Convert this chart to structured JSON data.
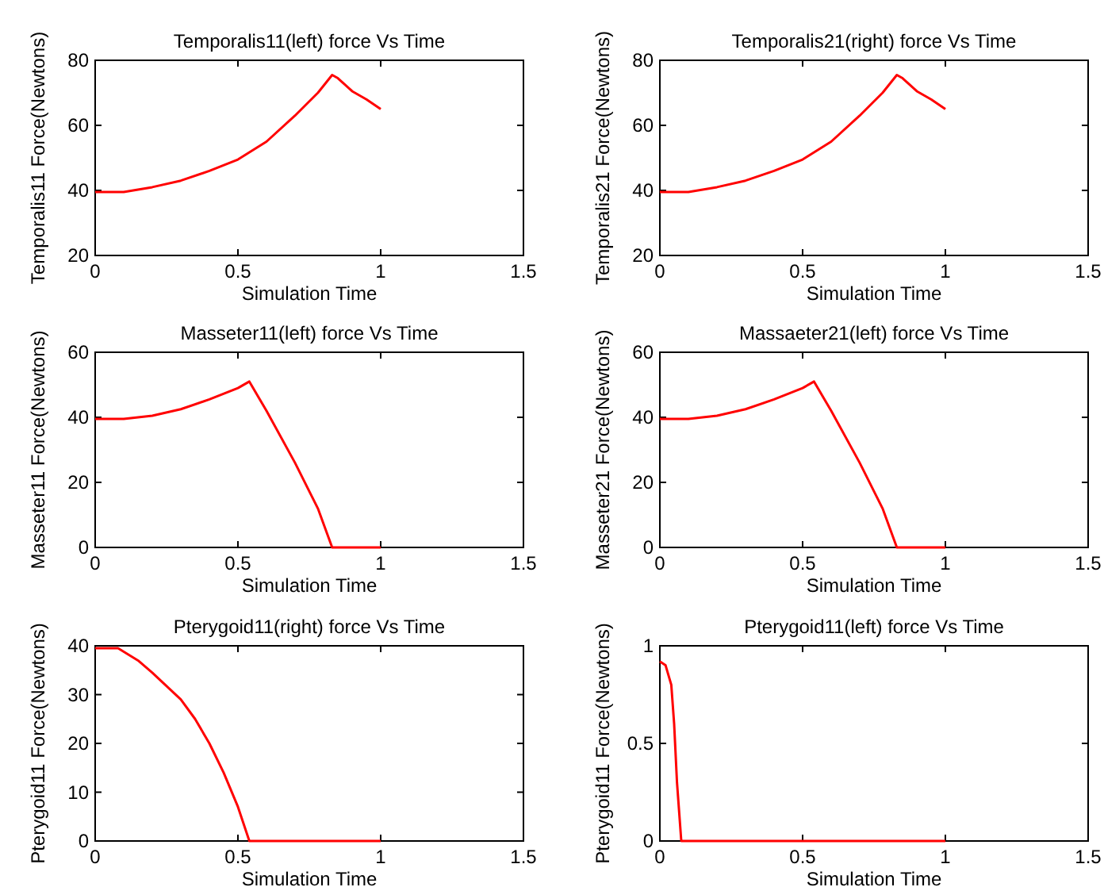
{
  "chart_data": [
    {
      "type": "line",
      "title": "Temporalis11(left) force Vs Time",
      "xlabel": "Simulation Time",
      "ylabel": "Temporalis11 Force(Newtons)",
      "xlim": [
        0,
        1.5
      ],
      "xticks": [
        0,
        0.5,
        1,
        1.5
      ],
      "ylim": [
        20,
        80
      ],
      "yticks": [
        20,
        40,
        60,
        80
      ],
      "series": [
        {
          "color": "#ff0000",
          "x": [
            0,
            0.1,
            0.2,
            0.3,
            0.4,
            0.5,
            0.6,
            0.7,
            0.78,
            0.83,
            0.85,
            0.9,
            0.95,
            1.0
          ],
          "values": [
            39.5,
            39.5,
            41,
            43,
            46,
            49.5,
            55,
            63,
            70,
            75.5,
            74.5,
            70.5,
            68,
            65
          ]
        }
      ]
    },
    {
      "type": "line",
      "title": "Temporalis21(right) force Vs Time",
      "xlabel": "Simulation Time",
      "ylabel": "Temporalis21 Force(Newtons)",
      "xlim": [
        0,
        1.5
      ],
      "xticks": [
        0,
        0.5,
        1,
        1.5
      ],
      "ylim": [
        20,
        80
      ],
      "yticks": [
        20,
        40,
        60,
        80
      ],
      "series": [
        {
          "color": "#ff0000",
          "x": [
            0,
            0.1,
            0.2,
            0.3,
            0.4,
            0.5,
            0.6,
            0.7,
            0.78,
            0.83,
            0.85,
            0.9,
            0.95,
            1.0
          ],
          "values": [
            39.5,
            39.5,
            41,
            43,
            46,
            49.5,
            55,
            63,
            70,
            75.5,
            74.5,
            70.5,
            68,
            65
          ]
        }
      ]
    },
    {
      "type": "line",
      "title": "Masseter11(left) force Vs Time",
      "xlabel": "Simulation Time",
      "ylabel": "Masseter11 Force(Newtons)",
      "xlim": [
        0,
        1.5
      ],
      "xticks": [
        0,
        0.5,
        1,
        1.5
      ],
      "ylim": [
        0,
        60
      ],
      "yticks": [
        0,
        20,
        40,
        60
      ],
      "series": [
        {
          "color": "#ff0000",
          "x": [
            0,
            0.1,
            0.2,
            0.3,
            0.4,
            0.5,
            0.54,
            0.6,
            0.7,
            0.78,
            0.83,
            1.0
          ],
          "values": [
            39.5,
            39.5,
            40.5,
            42.5,
            45.5,
            49,
            51,
            42,
            26,
            12,
            0,
            0
          ]
        }
      ]
    },
    {
      "type": "line",
      "title": "Massaeter21(left) force Vs Time",
      "xlabel": "Simulation Time",
      "ylabel": "Masseter21 Force(Newtons)",
      "xlim": [
        0,
        1.5
      ],
      "xticks": [
        0,
        0.5,
        1,
        1.5
      ],
      "ylim": [
        0,
        60
      ],
      "yticks": [
        0,
        20,
        40,
        60
      ],
      "series": [
        {
          "color": "#ff0000",
          "x": [
            0,
            0.1,
            0.2,
            0.3,
            0.4,
            0.5,
            0.54,
            0.6,
            0.7,
            0.78,
            0.83,
            1.0
          ],
          "values": [
            39.5,
            39.5,
            40.5,
            42.5,
            45.5,
            49,
            51,
            42,
            26,
            12,
            0,
            0
          ]
        }
      ]
    },
    {
      "type": "line",
      "title": "Pterygoid11(right) force Vs Time",
      "xlabel": "Simulation Time",
      "ylabel": "Pterygoid11 Force(Newtons)",
      "xlim": [
        0,
        1.5
      ],
      "xticks": [
        0,
        0.5,
        1,
        1.5
      ],
      "ylim": [
        0,
        40
      ],
      "yticks": [
        0,
        10,
        20,
        30,
        40
      ],
      "series": [
        {
          "color": "#ff0000",
          "x": [
            0,
            0.08,
            0.15,
            0.2,
            0.3,
            0.35,
            0.4,
            0.45,
            0.5,
            0.54,
            1.0
          ],
          "values": [
            39.5,
            39.5,
            37,
            34.5,
            29,
            25,
            20,
            14,
            7,
            0,
            0
          ]
        }
      ]
    },
    {
      "type": "line",
      "title": "Pterygoid11(left) force Vs Time",
      "xlabel": "Simulation Time",
      "ylabel": "Pterygoid11 Force(Newtons)",
      "xlim": [
        0,
        1.5
      ],
      "xticks": [
        0,
        0.5,
        1,
        1.5
      ],
      "ylim": [
        0,
        1
      ],
      "yticks": [
        0,
        0.5,
        1
      ],
      "series": [
        {
          "color": "#ff0000",
          "x": [
            0,
            0.02,
            0.04,
            0.05,
            0.06,
            0.075,
            1.0
          ],
          "values": [
            0.92,
            0.9,
            0.8,
            0.6,
            0.3,
            0,
            0
          ]
        }
      ]
    }
  ]
}
